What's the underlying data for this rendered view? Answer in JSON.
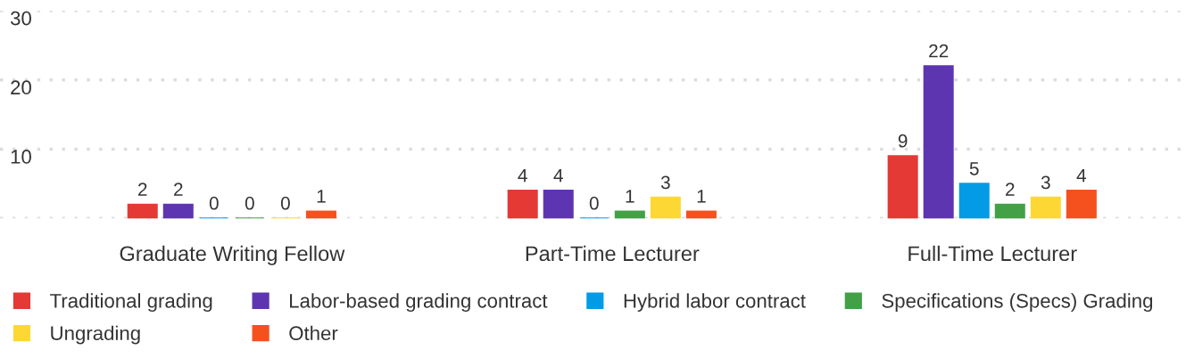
{
  "chart_data": {
    "type": "bar",
    "categories": [
      "Graduate Writing Fellow",
      "Part-Time Lecturer",
      "Full-Time Lecturer"
    ],
    "series": [
      {
        "name": "Traditional grading",
        "color": "#e53935",
        "values": [
          2,
          4,
          9
        ]
      },
      {
        "name": "Labor-based grading contract",
        "color": "#5e35b1",
        "values": [
          2,
          4,
          22
        ]
      },
      {
        "name": "Hybrid labor contract",
        "color": "#039be5",
        "values": [
          0,
          0,
          5
        ]
      },
      {
        "name": "Specifications (Specs) Grading",
        "color": "#43a047",
        "values": [
          0,
          1,
          2
        ]
      },
      {
        "name": "Ungrading",
        "color": "#fdd835",
        "values": [
          0,
          3,
          3
        ]
      },
      {
        "name": "Other",
        "color": "#f4511e",
        "values": [
          1,
          1,
          4
        ]
      }
    ],
    "ylim": [
      0,
      30
    ],
    "yticks": [
      {
        "value": 0,
        "label": null
      },
      10,
      20,
      30
    ],
    "grid": "y",
    "data_labels": true,
    "legend": "bottom"
  }
}
